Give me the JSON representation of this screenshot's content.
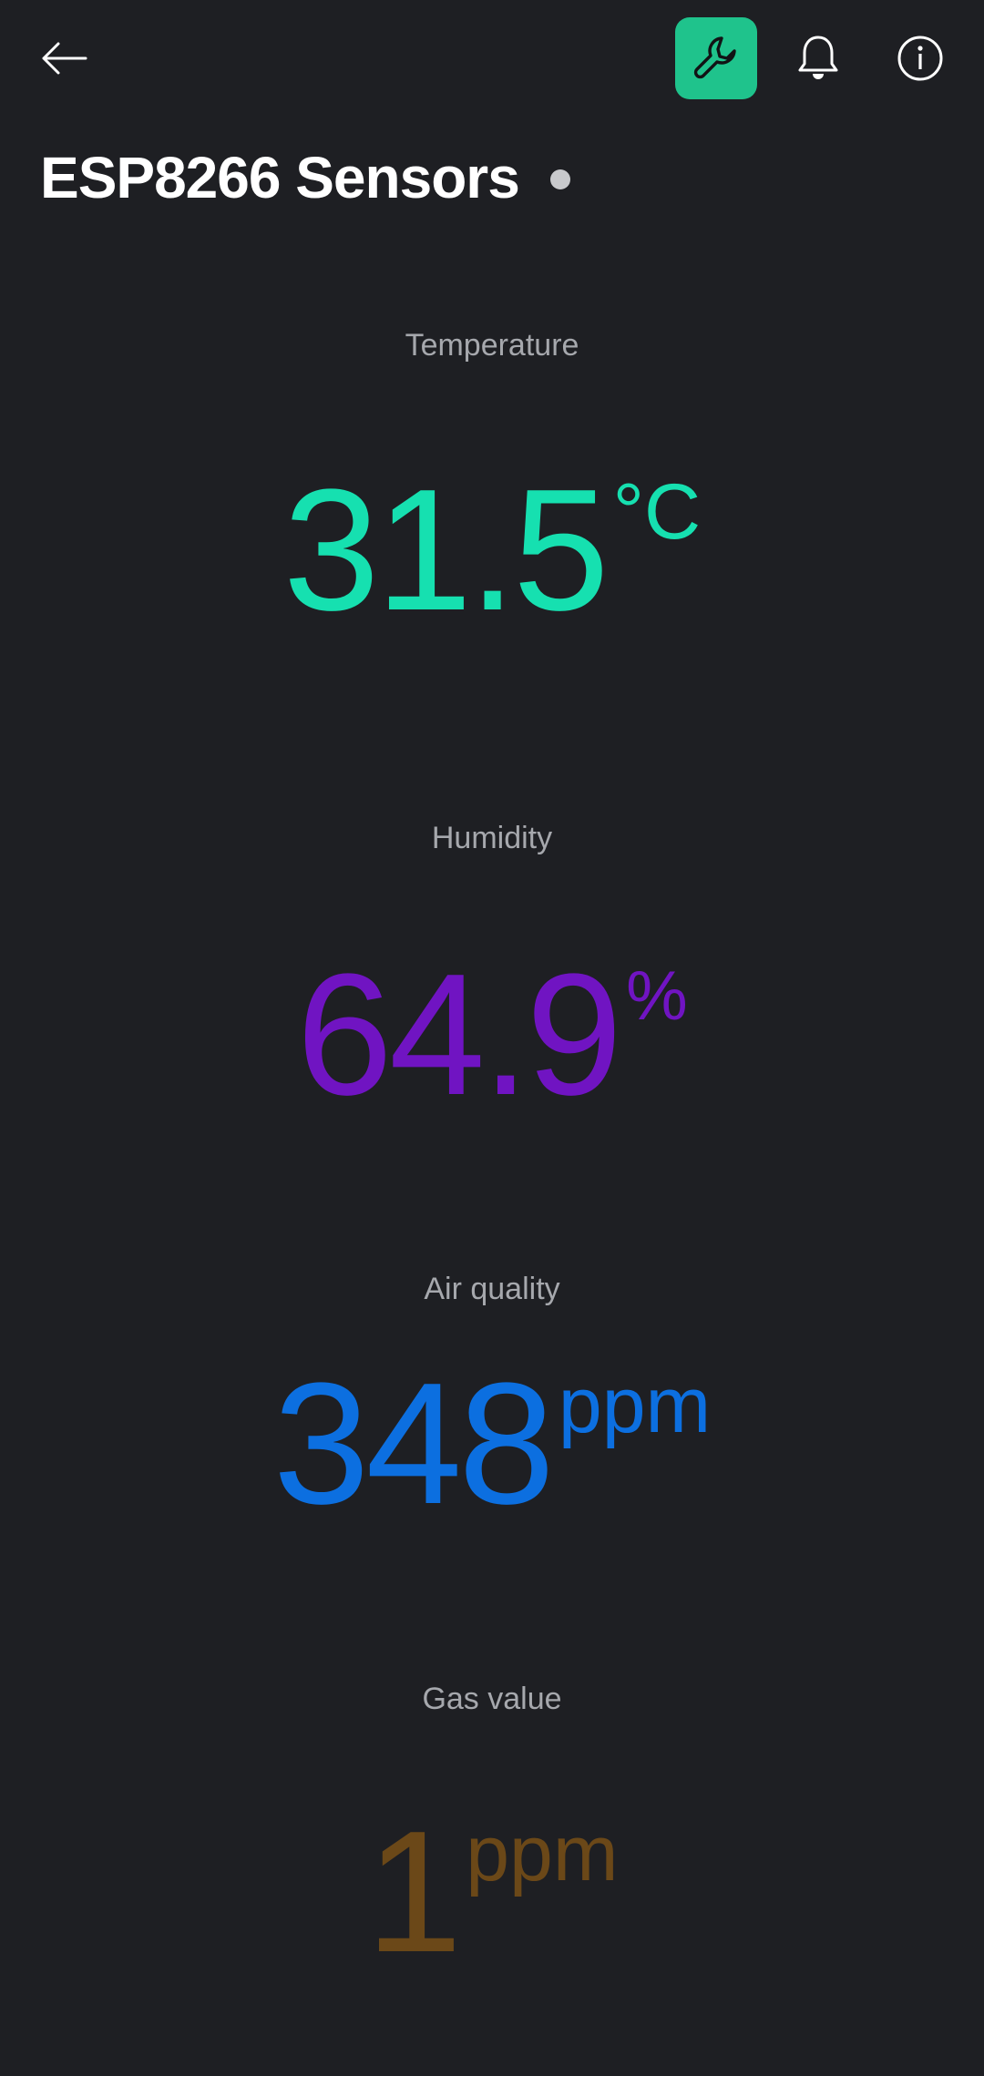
{
  "header": {
    "title": "ESP8266 Sensors",
    "status_dot_color": "#c8c9cc",
    "icons": {
      "back": "arrow-left-icon",
      "wrench": "wrench-icon",
      "bell": "bell-icon",
      "info": "info-icon"
    },
    "accent_color": "#1fc38c"
  },
  "widgets": [
    {
      "label": "Temperature",
      "value": "31.5",
      "unit": "°C",
      "color": "#16e0b0"
    },
    {
      "label": "Humidity",
      "value": "64.9",
      "unit": "%",
      "color": "#7014c2"
    },
    {
      "label": "Air quality",
      "value": "348",
      "unit": "ppm",
      "color": "#0c6fe0"
    },
    {
      "label": "Gas value",
      "value": "1",
      "unit": "ppm",
      "color": "#6b4818"
    }
  ]
}
